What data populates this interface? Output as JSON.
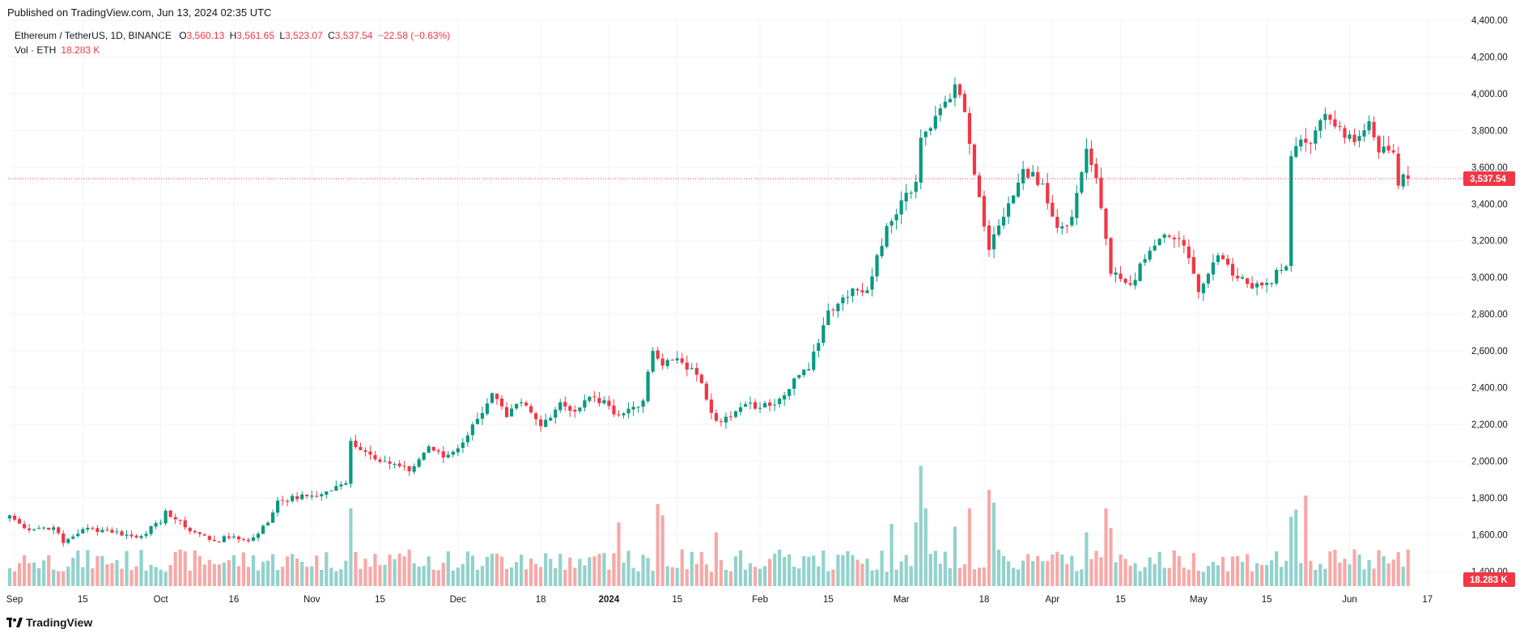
{
  "header": {
    "published": "Published on TradingView.com, Jun 13, 2024 02:35 UTC"
  },
  "legend": {
    "symbol": "Ethereum / TetherUS, 1D, BINANCE",
    "o_label": "O",
    "o_value": "3,560.13",
    "h_label": "H",
    "h_value": "3,561.65",
    "l_label": "L",
    "l_value": "3,523.07",
    "c_label": "C",
    "c_value": "3,537.54",
    "change": "−22.58 (−0.63%)",
    "vol_label": "Vol · ETH",
    "vol_value": "18.283 K"
  },
  "footer": {
    "brand": "TradingView"
  },
  "colors": {
    "up": "#089981",
    "down": "#f23645",
    "up_vol": "#92d2cc",
    "down_vol": "#f7a9a7",
    "grid": "#f0f3fa"
  },
  "chart_data": {
    "type": "candlestick",
    "y_axis": {
      "range": [
        1320,
        4400
      ],
      "ticks": [
        1400,
        1600,
        1800,
        2000,
        2200,
        2400,
        2600,
        2800,
        3000,
        3200,
        3400,
        3600,
        3800,
        4000,
        4200,
        4400
      ],
      "tick_labels": [
        "1,400.00",
        "1,600.00",
        "1,800.00",
        "2,000.00",
        "2,200.00",
        "2,400.00",
        "2,600.00",
        "2,800.00",
        "3,000.00",
        "3,200.00",
        "3,400.00",
        "3,600.00",
        "3,800.00",
        "4,000.00",
        "4,200.00",
        "4,400.00"
      ]
    },
    "x_axis": {
      "labels": [
        {
          "text": "Sep",
          "date": "2023-09-01",
          "bold": false
        },
        {
          "text": "15",
          "date": "2023-09-15",
          "bold": false
        },
        {
          "text": "Oct",
          "date": "2023-10-01",
          "bold": false
        },
        {
          "text": "16",
          "date": "2023-10-16",
          "bold": false
        },
        {
          "text": "Nov",
          "date": "2023-11-01",
          "bold": false
        },
        {
          "text": "15",
          "date": "2023-11-15",
          "bold": false
        },
        {
          "text": "Dec",
          "date": "2023-12-01",
          "bold": false
        },
        {
          "text": "18",
          "date": "2023-12-18",
          "bold": false
        },
        {
          "text": "2024",
          "date": "2024-01-01",
          "bold": true
        },
        {
          "text": "15",
          "date": "2024-01-15",
          "bold": false
        },
        {
          "text": "Feb",
          "date": "2024-02-01",
          "bold": false
        },
        {
          "text": "15",
          "date": "2024-02-15",
          "bold": false
        },
        {
          "text": "Mar",
          "date": "2024-03-01",
          "bold": false
        },
        {
          "text": "18",
          "date": "2024-03-18",
          "bold": false
        },
        {
          "text": "Apr",
          "date": "2024-04-01",
          "bold": false
        },
        {
          "text": "15",
          "date": "2024-04-15",
          "bold": false
        },
        {
          "text": "May",
          "date": "2024-05-01",
          "bold": false
        },
        {
          "text": "15",
          "date": "2024-05-15",
          "bold": false
        },
        {
          "text": "Jun",
          "date": "2024-06-01",
          "bold": false
        },
        {
          "text": "17",
          "date": "2024-06-17",
          "bold": false
        }
      ]
    },
    "price_anchors": [
      [
        "2023-08-31",
        1705
      ],
      [
        "2023-09-03",
        1635
      ],
      [
        "2023-09-09",
        1640
      ],
      [
        "2023-09-11",
        1555
      ],
      [
        "2023-09-15",
        1630
      ],
      [
        "2023-09-20",
        1625
      ],
      [
        "2023-09-26",
        1585
      ],
      [
        "2023-10-01",
        1665
      ],
      [
        "2023-10-02",
        1730
      ],
      [
        "2023-10-06",
        1640
      ],
      [
        "2023-10-12",
        1565
      ],
      [
        "2023-10-16",
        1590
      ],
      [
        "2023-10-19",
        1565
      ],
      [
        "2023-10-23",
        1665
      ],
      [
        "2023-10-25",
        1785
      ],
      [
        "2023-10-31",
        1810
      ],
      [
        "2023-11-03",
        1820
      ],
      [
        "2023-11-08",
        1880
      ],
      [
        "2023-11-09",
        2110
      ],
      [
        "2023-11-12",
        2050
      ],
      [
        "2023-11-16",
        2000
      ],
      [
        "2023-11-21",
        1945
      ],
      [
        "2023-11-25",
        2080
      ],
      [
        "2023-11-28",
        2020
      ],
      [
        "2023-12-01",
        2070
      ],
      [
        "2023-12-05",
        2230
      ],
      [
        "2023-12-08",
        2370
      ],
      [
        "2023-12-11",
        2240
      ],
      [
        "2023-12-14",
        2320
      ],
      [
        "2023-12-18",
        2190
      ],
      [
        "2023-12-22",
        2320
      ],
      [
        "2023-12-25",
        2270
      ],
      [
        "2023-12-28",
        2350
      ],
      [
        "2024-01-01",
        2300
      ],
      [
        "2024-01-03",
        2250
      ],
      [
        "2024-01-08",
        2330
      ],
      [
        "2024-01-10",
        2600
      ],
      [
        "2024-01-12",
        2520
      ],
      [
        "2024-01-15",
        2560
      ],
      [
        "2024-01-19",
        2470
      ],
      [
        "2024-01-23",
        2220
      ],
      [
        "2024-01-26",
        2240
      ],
      [
        "2024-01-29",
        2310
      ],
      [
        "2024-02-01",
        2290
      ],
      [
        "2024-02-05",
        2340
      ],
      [
        "2024-02-08",
        2450
      ],
      [
        "2024-02-11",
        2500
      ],
      [
        "2024-02-15",
        2820
      ],
      [
        "2024-02-20",
        2940
      ],
      [
        "2024-02-23",
        2930
      ],
      [
        "2024-02-27",
        3280
      ],
      [
        "2024-03-01",
        3420
      ],
      [
        "2024-03-04",
        3520
      ],
      [
        "2024-03-05",
        3760
      ],
      [
        "2024-03-09",
        3920
      ],
      [
        "2024-03-12",
        4050
      ],
      [
        "2024-03-14",
        3900
      ],
      [
        "2024-03-16",
        3560
      ],
      [
        "2024-03-19",
        3150
      ],
      [
        "2024-03-22",
        3330
      ],
      [
        "2024-03-26",
        3590
      ],
      [
        "2024-03-30",
        3510
      ],
      [
        "2024-04-02",
        3270
      ],
      [
        "2024-04-05",
        3330
      ],
      [
        "2024-04-08",
        3700
      ],
      [
        "2024-04-10",
        3540
      ],
      [
        "2024-04-12",
        3210
      ],
      [
        "2024-04-13",
        3020
      ],
      [
        "2024-04-17",
        2960
      ],
      [
        "2024-04-20",
        3100
      ],
      [
        "2024-04-23",
        3210
      ],
      [
        "2024-04-27",
        3210
      ],
      [
        "2024-04-30",
        3020
      ],
      [
        "2024-05-01",
        2920
      ],
      [
        "2024-05-05",
        3120
      ],
      [
        "2024-05-08",
        3010
      ],
      [
        "2024-05-12",
        2940
      ],
      [
        "2024-05-15",
        2970
      ],
      [
        "2024-05-19",
        3060
      ],
      [
        "2024-05-20",
        3660
      ],
      [
        "2024-05-22",
        3750
      ],
      [
        "2024-05-24",
        3730
      ],
      [
        "2024-05-27",
        3890
      ],
      [
        "2024-05-31",
        3760
      ],
      [
        "2024-06-03",
        3770
      ],
      [
        "2024-06-05",
        3850
      ],
      [
        "2024-06-07",
        3680
      ],
      [
        "2024-06-10",
        3680
      ],
      [
        "2024-06-11",
        3500
      ],
      [
        "2024-06-12",
        3560
      ],
      [
        "2024-06-13",
        3537.54
      ]
    ],
    "volume_spikes": [
      [
        "2023-11-09",
        0.55
      ],
      [
        "2024-01-11",
        0.58
      ],
      [
        "2024-01-12",
        0.5
      ],
      [
        "2024-01-03",
        0.45
      ],
      [
        "2024-03-05",
        0.85
      ],
      [
        "2024-03-04",
        0.45
      ],
      [
        "2024-03-06",
        0.55
      ],
      [
        "2024-03-15",
        0.55
      ],
      [
        "2024-03-19",
        0.68
      ],
      [
        "2024-03-20",
        0.59
      ],
      [
        "2024-04-12",
        0.55
      ],
      [
        "2024-04-13",
        0.41
      ],
      [
        "2024-05-20",
        0.49
      ],
      [
        "2024-05-21",
        0.54
      ],
      [
        "2024-05-23",
        0.64
      ],
      [
        "2024-03-12",
        0.42
      ],
      [
        "2024-04-08",
        0.38
      ],
      [
        "2024-01-23",
        0.38
      ],
      [
        "2024-02-28",
        0.44
      ],
      [
        "2024-06-11",
        0.24
      ]
    ],
    "last_price": 3537.54,
    "last_price_label": "3,537.54",
    "volume_axis_max": "18.283 K",
    "volume_label": "18.283 K"
  }
}
